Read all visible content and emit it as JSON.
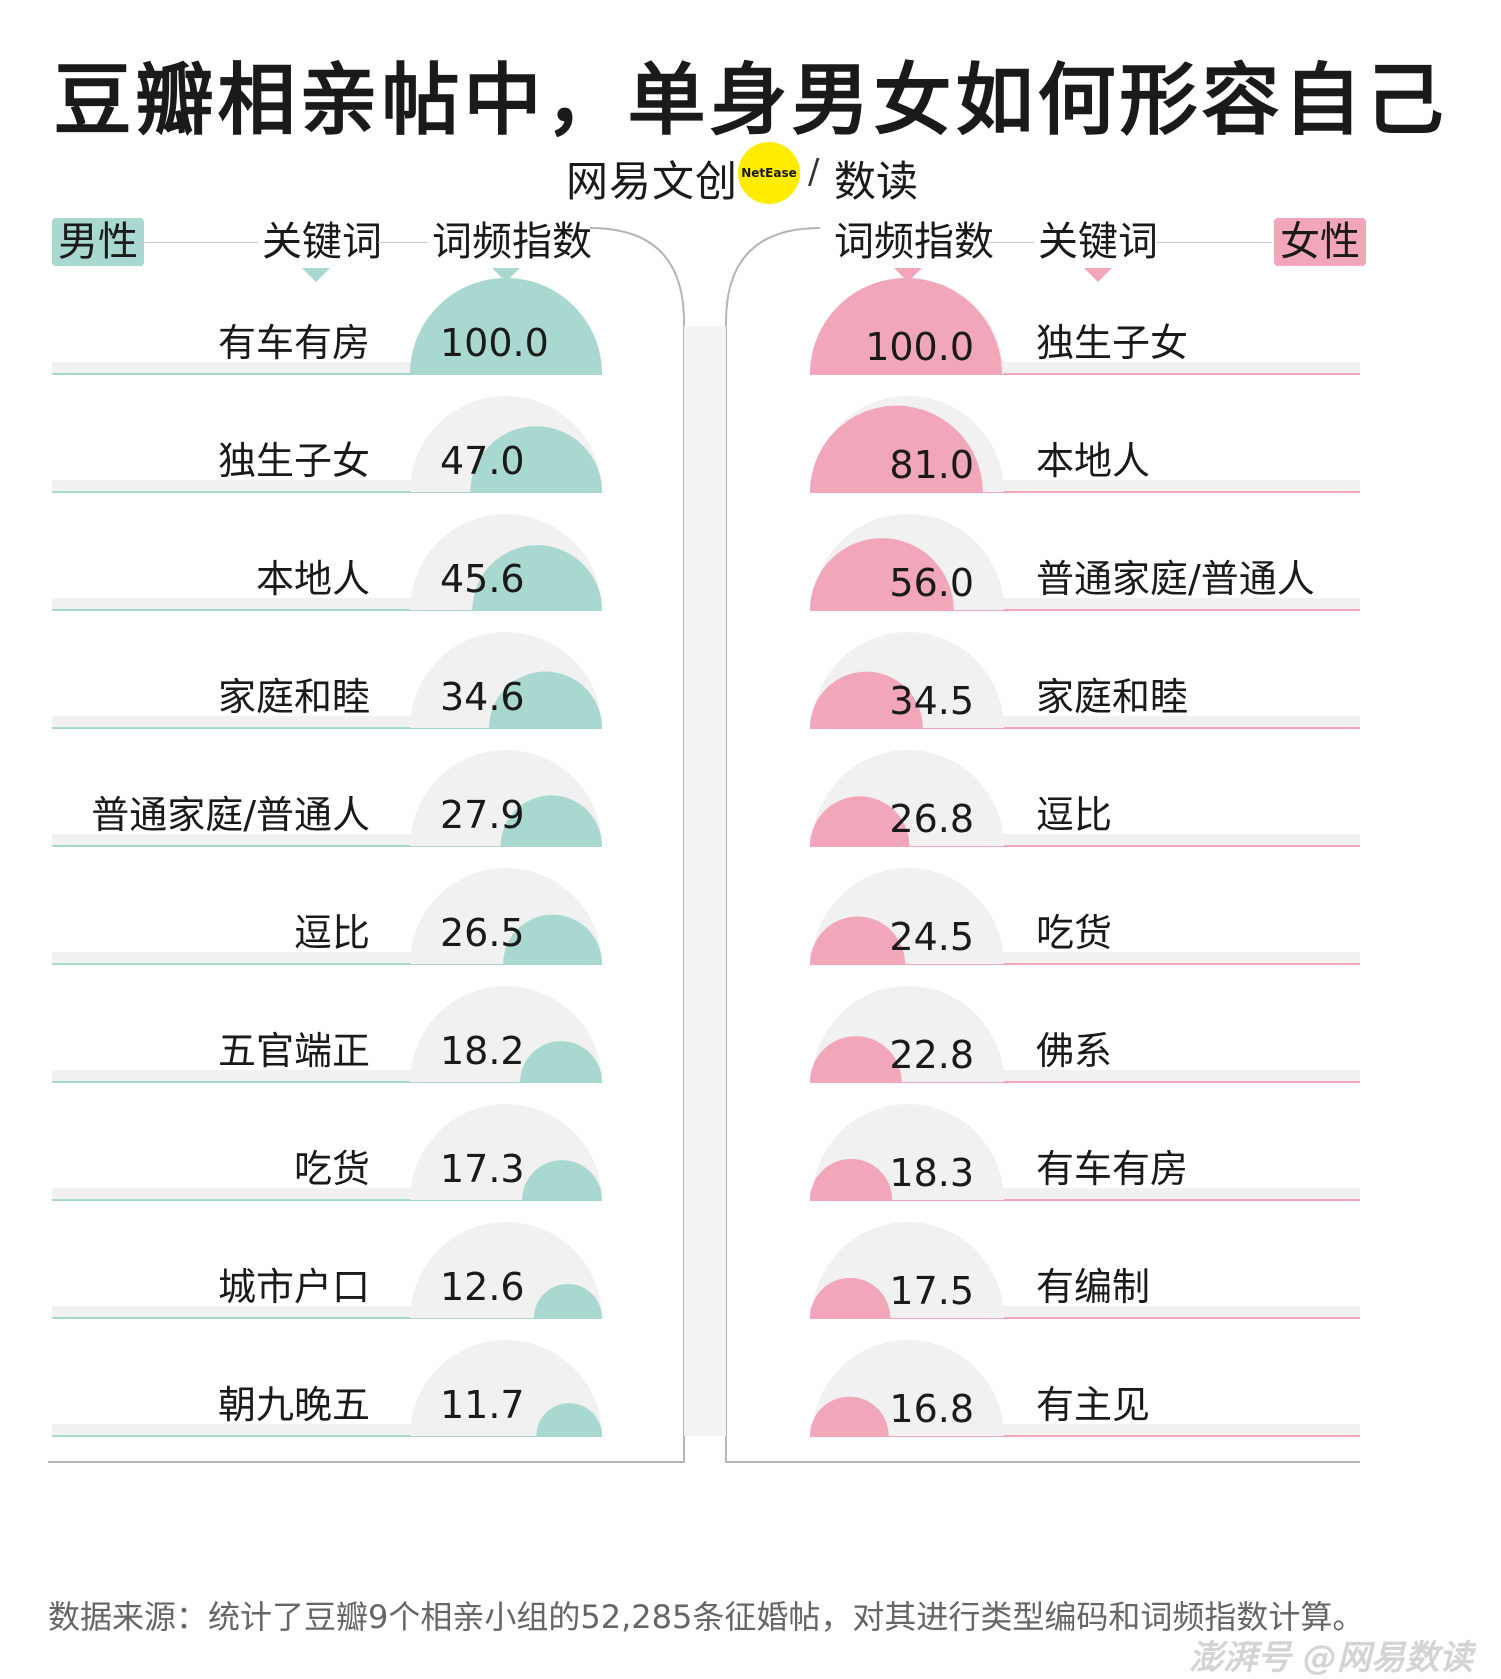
{
  "title": "豆瓣相亲帖中，单身男女如何形容自己",
  "brand": {
    "left": "网易文创",
    "circle": "NetEase",
    "slash": "/",
    "right": "数读"
  },
  "header": {
    "male_badge": "男性",
    "female_badge": "女性",
    "keyword": "关键词",
    "index": "词频指数"
  },
  "colors": {
    "male": "#a8d8cf",
    "female": "#f2a6b9",
    "ghost": "#f1f1f1"
  },
  "chart_data": [
    {
      "type": "bar",
      "series": [
        {
          "name": "男性",
          "values": [
            100.0,
            47.0,
            45.6,
            34.6,
            27.9,
            26.5,
            18.2,
            17.3,
            12.6,
            11.7
          ]
        }
      ],
      "categories": [
        "有车有房",
        "独生子女",
        "本地人",
        "家庭和睦",
        "普通家庭/普通人",
        "逗比",
        "五官端正",
        "吃货",
        "城市户口",
        "朝九晚五"
      ],
      "value_labels": [
        "100.0",
        "47.0",
        "45.6",
        "34.6",
        "27.9",
        "26.5",
        "18.2",
        "17.3",
        "12.6",
        "11.7"
      ],
      "ylim": [
        0,
        100
      ]
    },
    {
      "type": "bar",
      "series": [
        {
          "name": "女性",
          "values": [
            100.0,
            81.0,
            56.0,
            34.5,
            26.8,
            24.5,
            22.8,
            18.3,
            17.5,
            16.8
          ]
        }
      ],
      "categories": [
        "独生子女",
        "本地人",
        "普通家庭/普通人",
        "家庭和睦",
        "逗比",
        "吃货",
        "佛系",
        "有车有房",
        "有编制",
        "有主见"
      ],
      "value_labels": [
        "100.0",
        "81.0",
        "56.0",
        "34.5",
        "26.8",
        "24.5",
        "22.8",
        "18.3",
        "17.5",
        "16.8"
      ],
      "ylim": [
        0,
        100
      ]
    }
  ],
  "source": "数据来源：统计了豆瓣9个相亲小组的52,285条征婚帖，对其进行类型编码和词频指数计算。",
  "watermark": "澎湃号 @网易数读"
}
